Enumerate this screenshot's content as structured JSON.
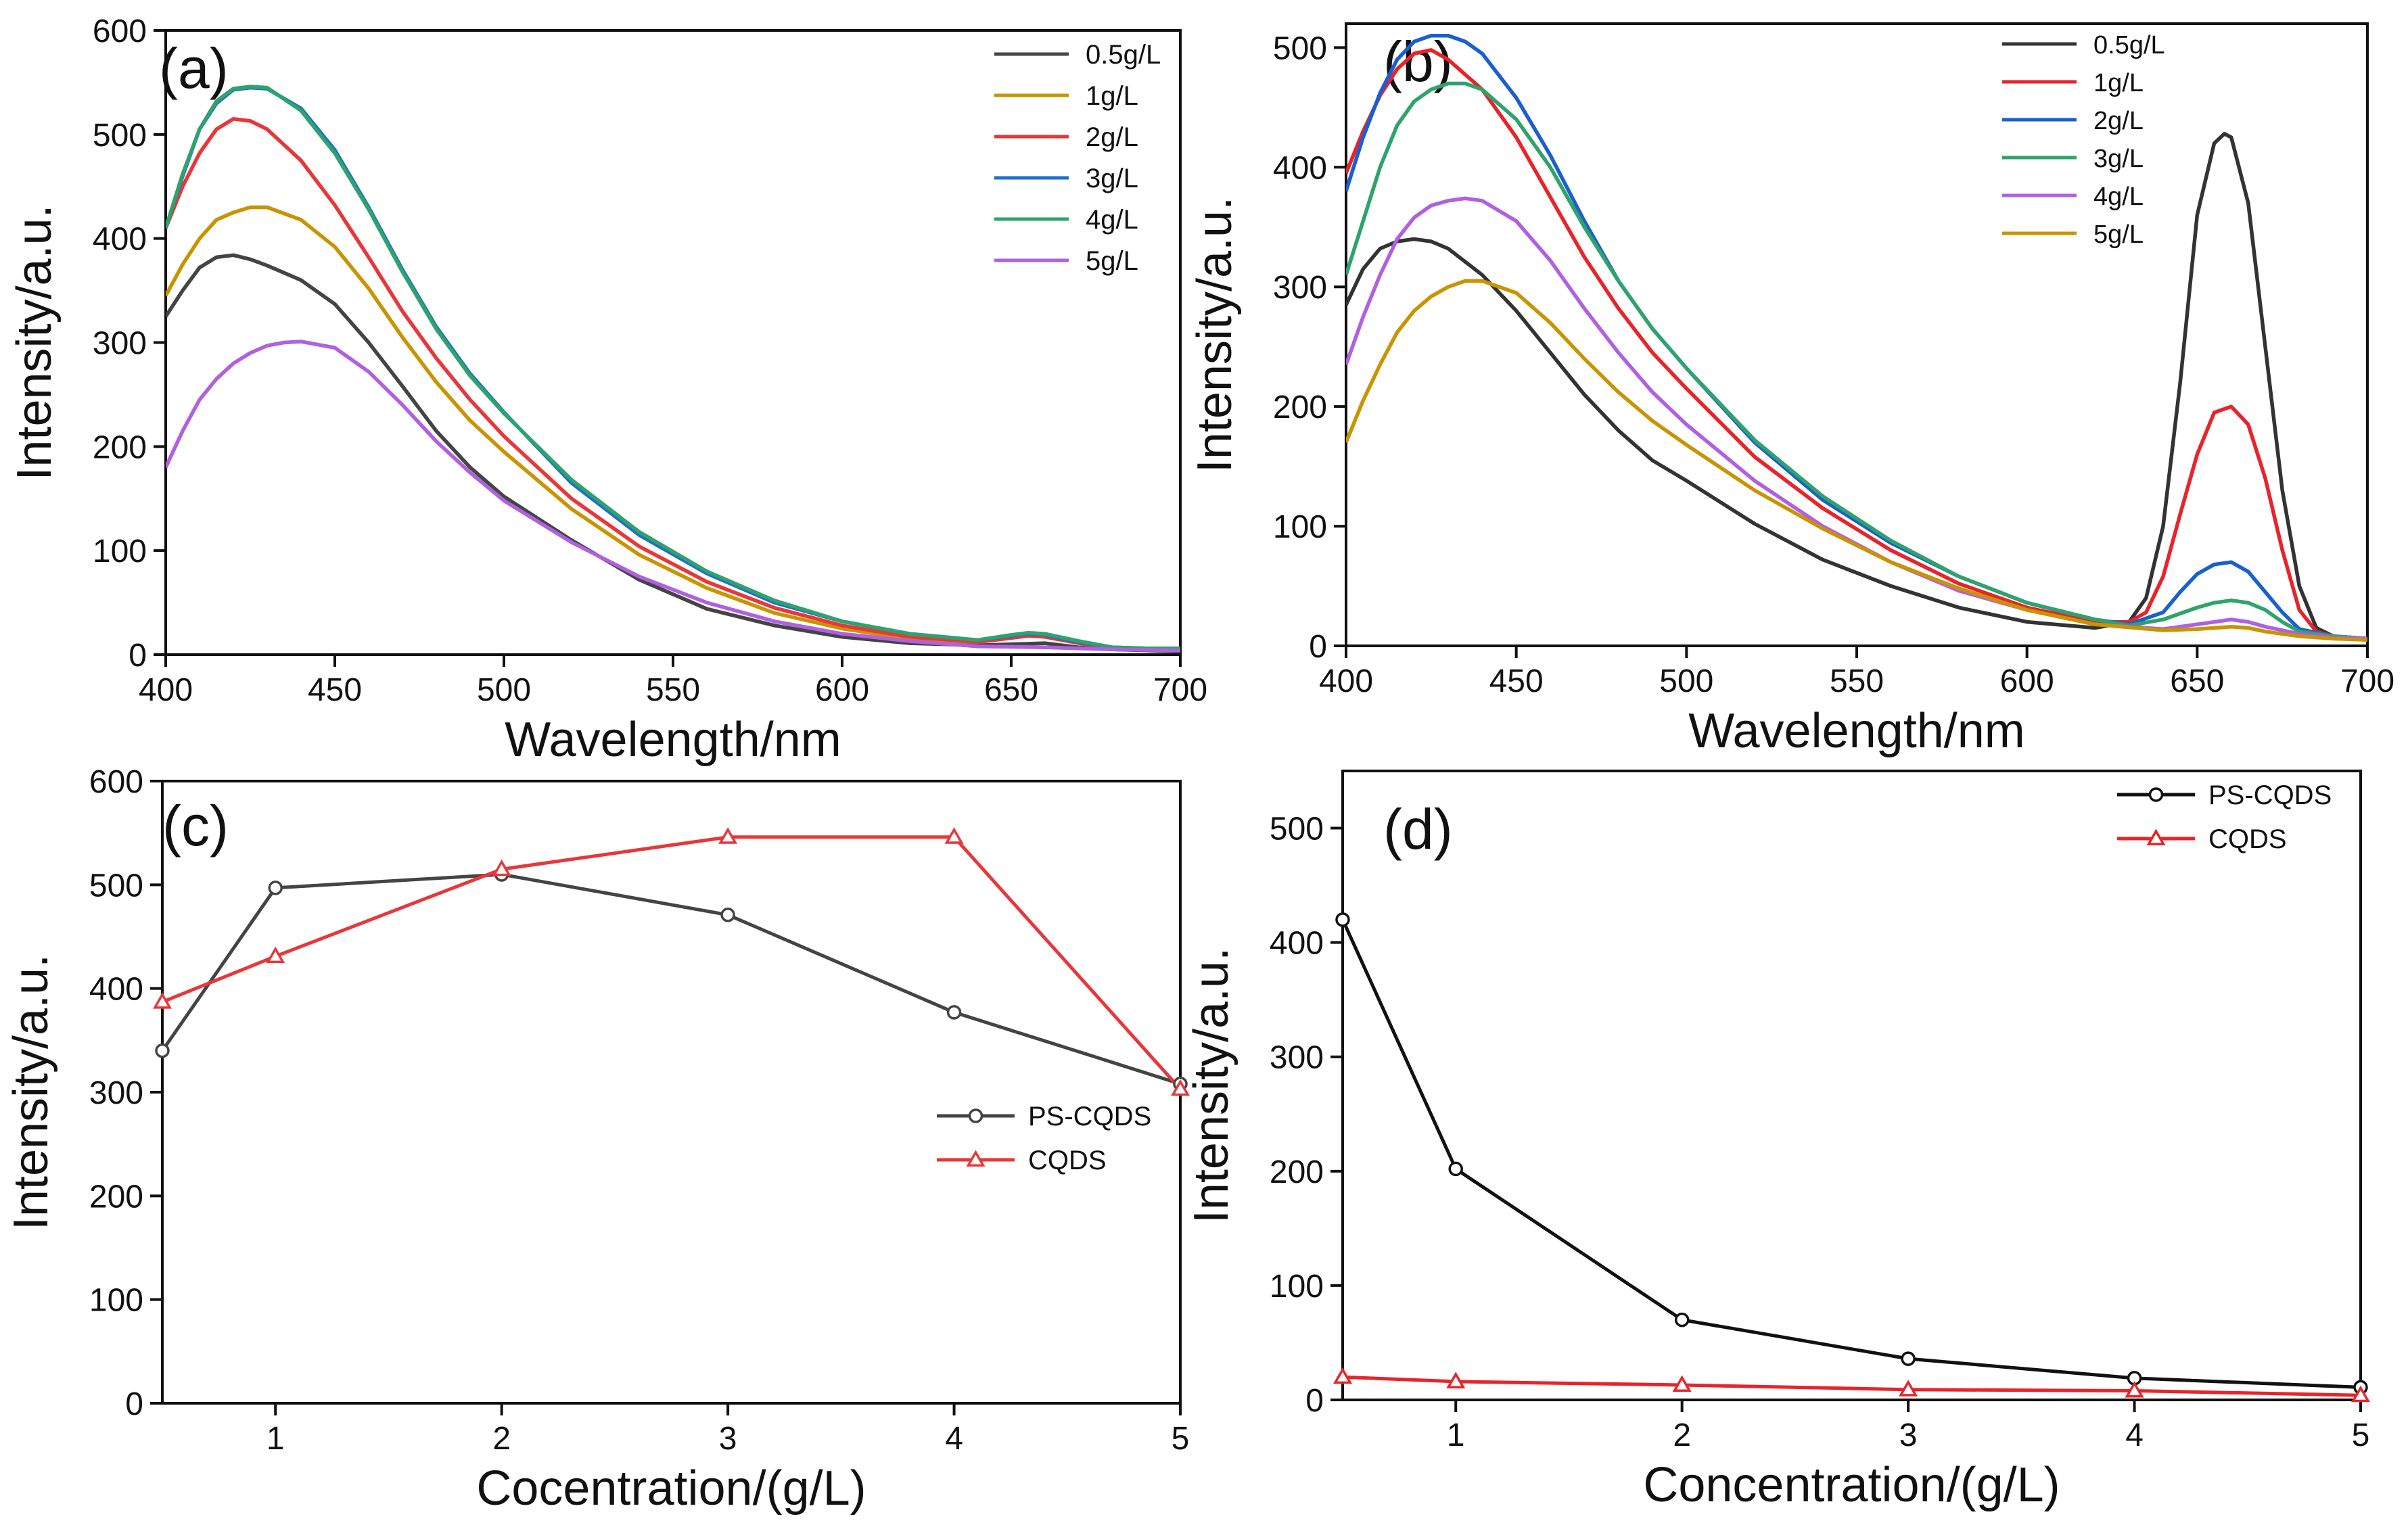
{
  "chart_data": [
    {
      "id": "a",
      "panel_label": "(a)",
      "type": "line",
      "xlabel": "Wavelength/nm",
      "ylabel": "Intensity/a.u.",
      "xlim": [
        400,
        700
      ],
      "ylim": [
        0,
        600
      ],
      "xticks": [
        "400",
        "450",
        "500",
        "550",
        "600",
        "650",
        "700"
      ],
      "yticks": [
        "0",
        "100",
        "200",
        "300",
        "400",
        "500",
        "600"
      ],
      "legend_position": "top-right",
      "series": [
        {
          "name": "0.5g/L",
          "color": "#444444",
          "x": [
            400,
            405,
            410,
            415,
            420,
            425,
            430,
            440,
            450,
            460,
            470,
            480,
            490,
            500,
            520,
            540,
            560,
            580,
            600,
            620,
            640,
            650,
            660,
            670,
            680,
            690,
            700
          ],
          "y": [
            325,
            350,
            372,
            382,
            384,
            380,
            374,
            360,
            337,
            300,
            258,
            215,
            180,
            152,
            110,
            72,
            44,
            28,
            17,
            11,
            9,
            10,
            11,
            7,
            5,
            4,
            3
          ]
        },
        {
          "name": "1g/L",
          "color": "#C99400",
          "x": [
            400,
            405,
            410,
            415,
            420,
            425,
            430,
            440,
            450,
            460,
            470,
            480,
            490,
            500,
            520,
            540,
            560,
            580,
            600,
            620,
            640,
            650,
            655,
            660,
            670,
            680,
            690,
            700
          ],
          "y": [
            345,
            375,
            400,
            418,
            425,
            430,
            430,
            418,
            392,
            352,
            305,
            262,
            225,
            195,
            140,
            96,
            64,
            40,
            25,
            15,
            12,
            17,
            20,
            19,
            12,
            6,
            5,
            5
          ]
        },
        {
          "name": "2g/L",
          "color": "#E8373A",
          "x": [
            400,
            405,
            410,
            415,
            420,
            425,
            430,
            440,
            450,
            460,
            470,
            480,
            490,
            500,
            520,
            540,
            560,
            580,
            600,
            620,
            640,
            650,
            655,
            660,
            670,
            680,
            690,
            700
          ],
          "y": [
            410,
            450,
            482,
            505,
            515,
            513,
            505,
            475,
            432,
            382,
            330,
            285,
            245,
            210,
            150,
            104,
            70,
            45,
            28,
            17,
            12,
            16,
            18,
            17,
            11,
            6,
            5,
            5
          ]
        },
        {
          "name": "3g/L",
          "color": "#1F6FCC",
          "x": [
            400,
            405,
            410,
            415,
            420,
            425,
            430,
            440,
            450,
            460,
            470,
            480,
            490,
            500,
            520,
            540,
            560,
            580,
            600,
            620,
            640,
            650,
            655,
            660,
            670,
            680,
            690,
            700
          ],
          "y": [
            410,
            460,
            505,
            530,
            543,
            545,
            544,
            525,
            485,
            430,
            370,
            315,
            270,
            233,
            165,
            115,
            78,
            50,
            32,
            20,
            14,
            18,
            20,
            19,
            12,
            7,
            6,
            6
          ]
        },
        {
          "name": "4g/L",
          "color": "#2EA36B",
          "x": [
            400,
            405,
            410,
            415,
            420,
            425,
            430,
            440,
            450,
            460,
            470,
            480,
            490,
            500,
            520,
            540,
            560,
            580,
            600,
            620,
            640,
            650,
            655,
            660,
            670,
            680,
            690,
            700
          ],
          "y": [
            410,
            462,
            505,
            532,
            544,
            546,
            545,
            523,
            482,
            428,
            368,
            313,
            268,
            232,
            168,
            118,
            80,
            52,
            32,
            20,
            14,
            19,
            21,
            20,
            13,
            7,
            6,
            6
          ]
        },
        {
          "name": "5g/L",
          "color": "#B060E0",
          "x": [
            400,
            405,
            410,
            415,
            420,
            425,
            430,
            435,
            440,
            450,
            460,
            470,
            480,
            490,
            500,
            520,
            540,
            560,
            580,
            600,
            620,
            640,
            660,
            680,
            700
          ],
          "y": [
            180,
            215,
            245,
            265,
            280,
            290,
            297,
            300,
            301,
            295,
            272,
            240,
            205,
            175,
            148,
            108,
            75,
            50,
            32,
            20,
            13,
            8,
            7,
            5,
            4
          ]
        }
      ]
    },
    {
      "id": "b",
      "panel_label": "(b)",
      "type": "line",
      "xlabel": "Wavelength/nm",
      "ylabel": "Intensity/a.u.",
      "xlim": [
        400,
        700
      ],
      "ylim": [
        0,
        520
      ],
      "xticks": [
        "400",
        "450",
        "500",
        "550",
        "600",
        "650",
        "700"
      ],
      "yticks": [
        "0",
        "100",
        "200",
        "300",
        "400",
        "500"
      ],
      "legend_position": "top-right",
      "series": [
        {
          "name": "0.5g/L",
          "color": "#333333",
          "x": [
            400,
            405,
            410,
            415,
            420,
            425,
            430,
            440,
            450,
            460,
            470,
            480,
            490,
            500,
            520,
            540,
            560,
            580,
            600,
            620,
            630,
            635,
            640,
            645,
            650,
            655,
            658,
            660,
            665,
            670,
            675,
            680,
            685,
            690,
            700
          ],
          "y": [
            285,
            315,
            332,
            338,
            340,
            338,
            332,
            310,
            280,
            245,
            210,
            180,
            155,
            138,
            102,
            72,
            50,
            32,
            20,
            15,
            20,
            40,
            100,
            220,
            360,
            420,
            428,
            425,
            370,
            250,
            130,
            50,
            15,
            8,
            6
          ]
        },
        {
          "name": "1g/L",
          "color": "#E8242A",
          "x": [
            400,
            405,
            410,
            415,
            420,
            425,
            430,
            440,
            450,
            460,
            470,
            480,
            490,
            500,
            520,
            540,
            560,
            580,
            600,
            620,
            630,
            635,
            640,
            645,
            650,
            655,
            660,
            665,
            670,
            675,
            680,
            685,
            690,
            700
          ],
          "y": [
            395,
            430,
            460,
            482,
            495,
            498,
            490,
            465,
            425,
            375,
            325,
            282,
            245,
            215,
            158,
            115,
            80,
            52,
            32,
            20,
            20,
            28,
            58,
            110,
            160,
            195,
            200,
            185,
            140,
            80,
            30,
            12,
            8,
            6
          ]
        },
        {
          "name": "2g/L",
          "color": "#1A5FD0",
          "x": [
            400,
            405,
            410,
            415,
            420,
            425,
            430,
            435,
            440,
            450,
            460,
            470,
            480,
            490,
            500,
            520,
            540,
            560,
            580,
            600,
            620,
            630,
            640,
            645,
            650,
            655,
            660,
            665,
            670,
            675,
            680,
            690,
            700
          ],
          "y": [
            380,
            425,
            462,
            490,
            505,
            510,
            510,
            505,
            495,
            458,
            410,
            355,
            305,
            265,
            232,
            170,
            122,
            86,
            58,
            36,
            22,
            18,
            28,
            45,
            60,
            68,
            70,
            62,
            45,
            28,
            14,
            8,
            6
          ]
        },
        {
          "name": "3g/L",
          "color": "#2EA36B",
          "x": [
            400,
            405,
            410,
            415,
            420,
            425,
            430,
            435,
            440,
            450,
            460,
            470,
            480,
            490,
            500,
            520,
            540,
            560,
            580,
            600,
            620,
            630,
            640,
            650,
            655,
            660,
            665,
            670,
            675,
            680,
            690,
            700
          ],
          "y": [
            310,
            355,
            400,
            435,
            455,
            465,
            470,
            470,
            465,
            440,
            400,
            350,
            305,
            265,
            232,
            172,
            125,
            88,
            58,
            36,
            22,
            17,
            22,
            32,
            36,
            38,
            36,
            30,
            20,
            12,
            8,
            6
          ]
        },
        {
          "name": "4g/L",
          "color": "#B060E0",
          "x": [
            400,
            405,
            410,
            415,
            420,
            425,
            430,
            435,
            440,
            450,
            460,
            470,
            480,
            490,
            500,
            520,
            540,
            560,
            580,
            600,
            620,
            640,
            650,
            660,
            665,
            670,
            680,
            690,
            700
          ],
          "y": [
            235,
            275,
            310,
            340,
            358,
            368,
            372,
            374,
            372,
            355,
            322,
            282,
            245,
            212,
            185,
            138,
            100,
            70,
            46,
            30,
            18,
            14,
            18,
            22,
            20,
            16,
            10,
            7,
            6
          ]
        },
        {
          "name": "5g/L",
          "color": "#C99400",
          "x": [
            400,
            405,
            410,
            415,
            420,
            425,
            430,
            435,
            440,
            450,
            460,
            470,
            480,
            490,
            500,
            520,
            540,
            560,
            580,
            600,
            620,
            640,
            650,
            660,
            665,
            670,
            680,
            690,
            700
          ],
          "y": [
            170,
            205,
            235,
            262,
            280,
            292,
            300,
            305,
            305,
            295,
            270,
            240,
            212,
            188,
            168,
            130,
            98,
            70,
            48,
            30,
            18,
            13,
            14,
            16,
            15,
            12,
            8,
            6,
            5
          ]
        }
      ]
    },
    {
      "id": "c",
      "panel_label": "(c)",
      "type": "line",
      "xlabel": "Cocentration/(g/L)",
      "ylabel": "Intensity/a.u.",
      "xlim": [
        0.5,
        5
      ],
      "ylim": [
        0,
        600
      ],
      "xticks": [
        "1",
        "2",
        "3",
        "4",
        "5"
      ],
      "yticks": [
        "0",
        "100",
        "200",
        "300",
        "400",
        "500",
        "600"
      ],
      "legend_position": "center-right",
      "series": [
        {
          "name": "PS-CQDS",
          "color": "#444444",
          "marker": "circle",
          "x": [
            0.5,
            1,
            2,
            3,
            4,
            5
          ],
          "y": [
            340,
            497,
            510,
            471,
            377,
            308
          ]
        },
        {
          "name": "CQDS",
          "color": "#E8373A",
          "marker": "triangle",
          "x": [
            0.5,
            1,
            2,
            3,
            4,
            5
          ],
          "y": [
            387,
            431,
            515,
            546,
            546,
            303
          ]
        }
      ]
    },
    {
      "id": "d",
      "panel_label": "(d)",
      "type": "line",
      "xlabel": "Concentration/(g/L)",
      "ylabel": "Intensity/a.u.",
      "xlim": [
        0.5,
        5
      ],
      "ylim": [
        0,
        550
      ],
      "xticks": [
        "1",
        "2",
        "3",
        "4",
        "5"
      ],
      "yticks": [
        "0",
        "100",
        "200",
        "300",
        "400",
        "500"
      ],
      "legend_position": "top-right",
      "series": [
        {
          "name": "PS-CQDS",
          "color": "#111111",
          "marker": "circle",
          "x": [
            0.5,
            1,
            2,
            3,
            4,
            5
          ],
          "y": [
            420,
            202,
            70,
            36,
            19,
            11
          ]
        },
        {
          "name": "CQDS",
          "color": "#E8242A",
          "marker": "triangle",
          "x": [
            0.5,
            1,
            2,
            3,
            4,
            5
          ],
          "y": [
            20,
            16,
            13,
            9,
            8,
            4
          ]
        }
      ]
    }
  ]
}
